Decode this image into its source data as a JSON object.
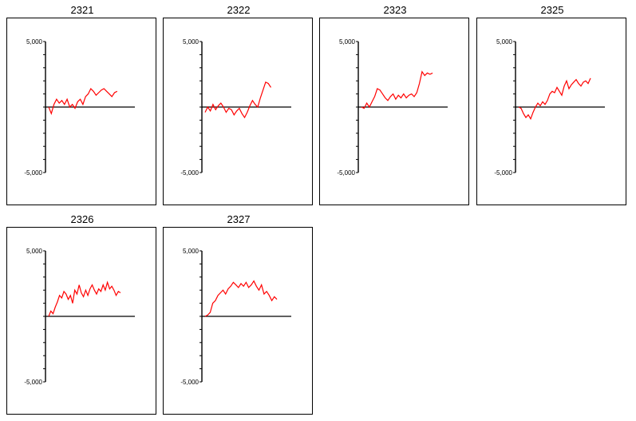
{
  "chart_data": [
    {
      "type": "line",
      "title": "2321",
      "ylim": [
        -5000,
        5000
      ],
      "ytick_labels": [
        "5,000",
        "-5,000"
      ],
      "series": [
        {
          "x": [
            0,
            1,
            2,
            3,
            4,
            5,
            6,
            7,
            8,
            9,
            10,
            11,
            12,
            13,
            14,
            15,
            16,
            17,
            18,
            19,
            20,
            21,
            22,
            23,
            24,
            25,
            26
          ],
          "values": [
            0,
            -500,
            200,
            600,
            300,
            500,
            200,
            600,
            0,
            200,
            -100,
            400,
            600,
            200,
            800,
            1000,
            1400,
            1200,
            900,
            1100,
            1300,
            1400,
            1200,
            1000,
            800,
            1100,
            1200
          ],
          "color": "#ff0000"
        }
      ]
    },
    {
      "type": "line",
      "title": "2322",
      "ylim": [
        -5000,
        5000
      ],
      "ytick_labels": [
        "5,000",
        "-5,000"
      ],
      "series": [
        {
          "x": [
            0,
            1,
            2,
            3,
            4,
            5,
            6,
            7,
            8,
            9,
            10,
            11,
            12,
            13,
            14,
            15,
            16,
            17,
            18,
            19,
            20,
            21,
            22,
            23,
            24,
            25
          ],
          "values": [
            -400,
            0,
            -300,
            200,
            -200,
            100,
            300,
            0,
            -400,
            -100,
            -200,
            -600,
            -300,
            -100,
            -500,
            -800,
            -400,
            100,
            500,
            200,
            0,
            700,
            1300,
            1900,
            1800,
            1500
          ],
          "color": "#ff0000"
        }
      ]
    },
    {
      "type": "line",
      "title": "2323",
      "ylim": [
        -5000,
        5000
      ],
      "ytick_labels": [
        "5,000",
        "-5,000"
      ],
      "series": [
        {
          "x": [
            0,
            1,
            2,
            3,
            4,
            5,
            6,
            7,
            8,
            9,
            10,
            11,
            12,
            13,
            14,
            15,
            16,
            17,
            18,
            19,
            20,
            21,
            22,
            23,
            24,
            25,
            26,
            27
          ],
          "values": [
            0,
            -100,
            300,
            0,
            400,
            800,
            1400,
            1300,
            1000,
            700,
            500,
            800,
            1000,
            600,
            900,
            700,
            1000,
            700,
            900,
            1000,
            800,
            1100,
            1800,
            2700,
            2400,
            2600,
            2500,
            2600
          ],
          "color": "#ff0000"
        }
      ]
    },
    {
      "type": "line",
      "title": "2325",
      "ylim": [
        -5000,
        5000
      ],
      "ytick_labels": [
        "5,000",
        "-5,000"
      ],
      "series": [
        {
          "x": [
            0,
            1,
            2,
            3,
            4,
            5,
            6,
            7,
            8,
            9,
            10,
            11,
            12,
            13,
            14,
            15,
            16,
            17,
            18,
            19,
            20,
            21,
            22,
            23,
            24,
            25,
            26,
            27,
            28,
            29,
            30
          ],
          "values": [
            0,
            -100,
            -500,
            -800,
            -600,
            -900,
            -400,
            0,
            300,
            100,
            400,
            200,
            500,
            1000,
            1200,
            1100,
            1500,
            1200,
            900,
            1600,
            2000,
            1400,
            1700,
            1900,
            2100,
            1800,
            1600,
            1900,
            2000,
            1800,
            2200
          ],
          "color": "#ff0000"
        }
      ]
    },
    {
      "type": "line",
      "title": "2326",
      "ylim": [
        -5000,
        5000
      ],
      "ytick_labels": [
        "5,000",
        "-5,000"
      ],
      "series": [
        {
          "x": [
            0,
            1,
            2,
            3,
            4,
            5,
            6,
            7,
            8,
            9,
            10,
            11,
            12,
            13,
            14,
            15,
            16,
            17,
            18,
            19,
            20,
            21,
            22,
            23,
            24,
            25,
            26,
            27,
            28,
            29,
            30,
            31,
            32,
            33
          ],
          "values": [
            0,
            400,
            200,
            700,
            1100,
            1600,
            1400,
            1900,
            1700,
            1300,
            1600,
            1000,
            2000,
            1700,
            2400,
            1800,
            1500,
            2000,
            1600,
            2100,
            2400,
            2000,
            1700,
            2100,
            1900,
            2400,
            2000,
            2600,
            2100,
            2300,
            2000,
            1600,
            1900,
            1800
          ],
          "color": "#ff0000"
        }
      ]
    },
    {
      "type": "line",
      "title": "2327",
      "ylim": [
        -5000,
        5000
      ],
      "ytick_labels": [
        "5,000",
        "-5,000"
      ],
      "series": [
        {
          "x": [
            0,
            1,
            2,
            3,
            4,
            5,
            6,
            7,
            8,
            9,
            10,
            11,
            12,
            13,
            14,
            15,
            16,
            17,
            18,
            19,
            20,
            21,
            22,
            23,
            24,
            25,
            26,
            27,
            28
          ],
          "values": [
            0,
            100,
            300,
            1000,
            1200,
            1600,
            1800,
            2000,
            1700,
            2100,
            2300,
            2600,
            2400,
            2200,
            2500,
            2300,
            2600,
            2200,
            2400,
            2700,
            2300,
            2000,
            2400,
            1700,
            1900,
            1600,
            1200,
            1500,
            1300
          ],
          "color": "#ff0000"
        }
      ]
    }
  ]
}
